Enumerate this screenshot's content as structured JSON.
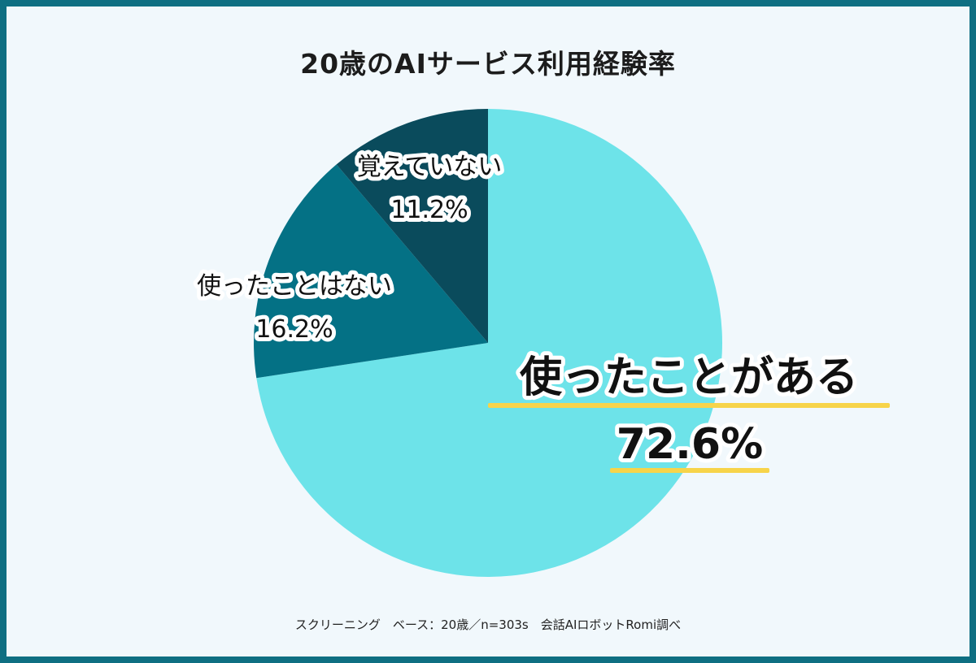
{
  "chart_data": {
    "type": "pie",
    "title": "20歳のAIサービス利用経験率",
    "slices": [
      {
        "label": "使ったことがある",
        "value": 72.6,
        "value_label": "72.6%",
        "color": "#6de3e9"
      },
      {
        "label": "使ったことはない",
        "value": 16.2,
        "value_label": "16.2%",
        "color": "#047185"
      },
      {
        "label": "覚えていない",
        "value": 11.2,
        "value_label": "11.2%",
        "color": "#0a4b5c"
      }
    ],
    "start": "top",
    "direction": "clockwise",
    "highlight_color": "#f7d44a",
    "footnote": "スクリーニング　ベース：20歳／n=303s　会話AIロボットRomi調べ"
  }
}
